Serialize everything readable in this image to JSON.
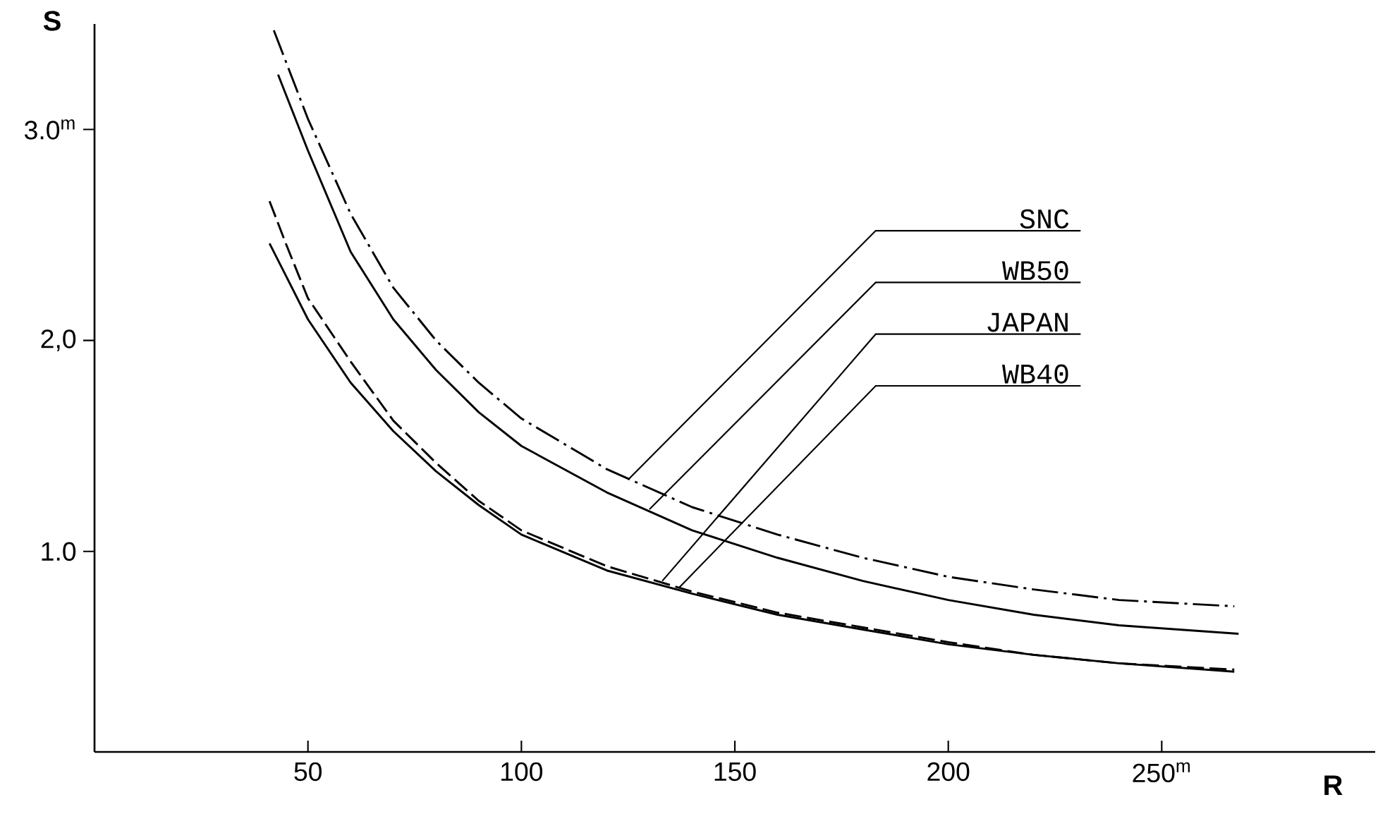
{
  "chart_data": {
    "type": "line",
    "xlabel": "R",
    "ylabel": "S",
    "xlim": [
      0,
      300
    ],
    "ylim": [
      0.05,
      3.5
    ],
    "xticks": [
      50,
      100,
      150,
      200,
      {
        "value": 250,
        "label": "250$^{m}$"
      }
    ],
    "yticks": [
      {
        "value": 1,
        "label": "1.0"
      },
      {
        "value": 2,
        "label": "2,0"
      },
      {
        "value": 3,
        "label": "3.0$^{m}$"
      }
    ],
    "grid": false,
    "legend": false,
    "marker": "none",
    "annotations": [
      {
        "text": "SNC",
        "x": 125,
        "y": 1.34
      },
      {
        "text": "WB50",
        "x": 130,
        "y": 1.2
      },
      {
        "text": "JAPAN",
        "x": 133,
        "y": 0.86
      },
      {
        "text": "WB40",
        "x": 137,
        "y": 0.83
      }
    ],
    "series": [
      {
        "color": "#000000",
        "line_style": "dashdot",
        "x": [
          42,
          50,
          60,
          70,
          80,
          90,
          100,
          120,
          140,
          160,
          180,
          200,
          220,
          240,
          267
        ],
        "values": [
          3.47,
          3.05,
          2.6,
          2.25,
          2.0,
          1.8,
          1.63,
          1.39,
          1.21,
          1.08,
          0.97,
          0.88,
          0.82,
          0.77,
          0.74
        ]
      },
      {
        "color": "#000000",
        "line_style": "solid",
        "x": [
          43,
          50,
          60,
          70,
          80,
          90,
          100,
          120,
          140,
          160,
          180,
          200,
          220,
          240,
          268
        ],
        "values": [
          3.26,
          2.9,
          2.42,
          2.1,
          1.86,
          1.66,
          1.5,
          1.28,
          1.1,
          0.97,
          0.86,
          0.77,
          0.7,
          0.65,
          0.61
        ]
      },
      {
        "color": "#000000",
        "line_style": "dashed",
        "x": [
          41,
          45,
          50,
          60,
          70,
          80,
          90,
          100,
          120,
          140,
          160,
          180,
          200,
          220,
          240,
          267
        ],
        "values": [
          2.66,
          2.45,
          2.2,
          1.9,
          1.62,
          1.42,
          1.24,
          1.1,
          0.93,
          0.81,
          0.71,
          0.64,
          0.57,
          0.51,
          0.47,
          0.44
        ]
      },
      {
        "color": "#000000",
        "line_style": "solid",
        "x": [
          41,
          45,
          50,
          60,
          70,
          80,
          90,
          100,
          120,
          140,
          160,
          180,
          200,
          220,
          240,
          267
        ],
        "values": [
          2.46,
          2.3,
          2.1,
          1.8,
          1.57,
          1.38,
          1.22,
          1.08,
          0.91,
          0.8,
          0.7,
          0.63,
          0.56,
          0.51,
          0.47,
          0.43
        ]
      }
    ]
  }
}
